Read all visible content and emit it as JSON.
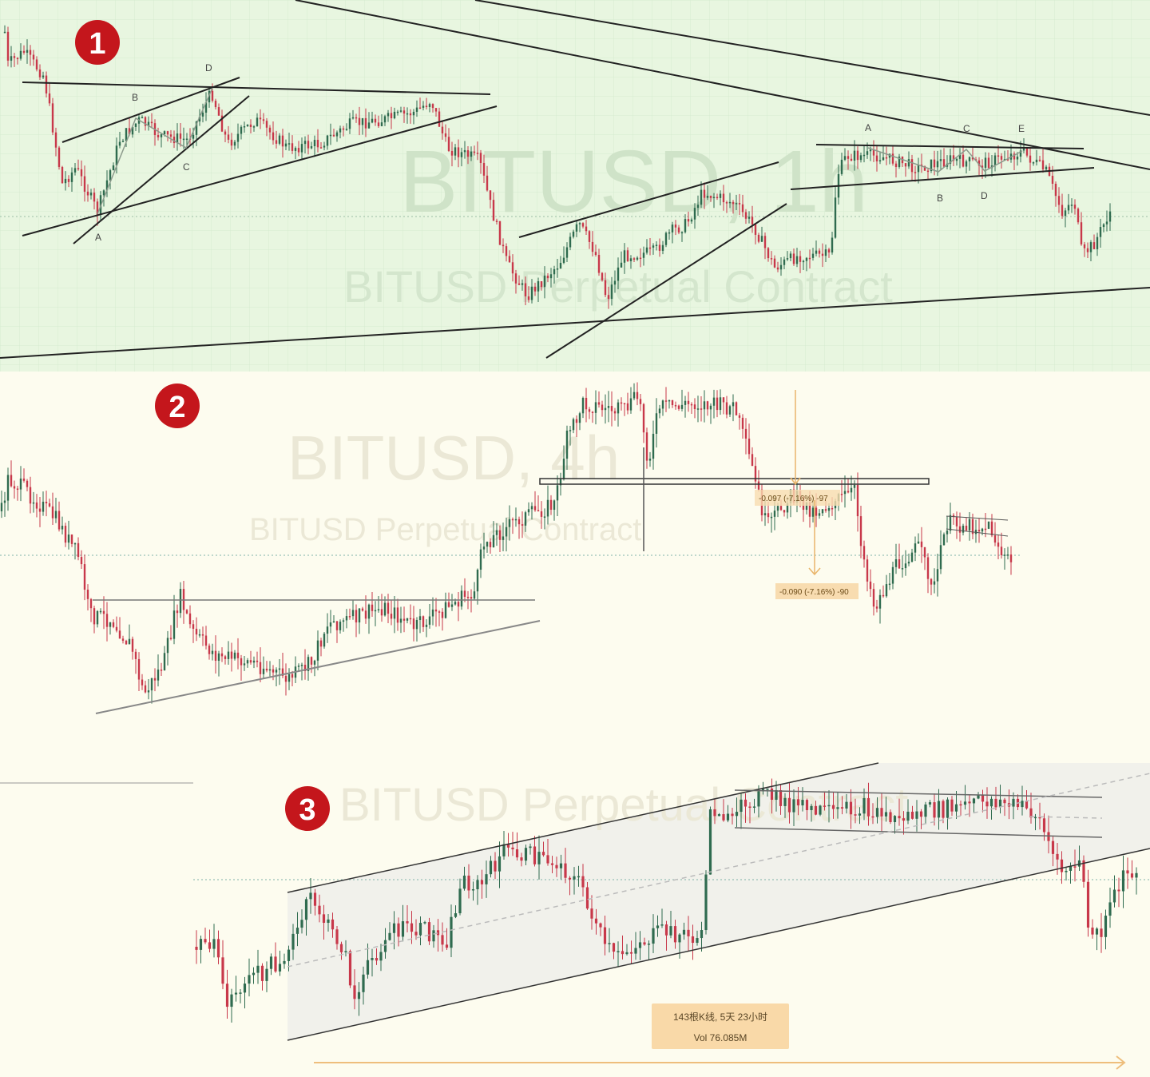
{
  "panels": [
    {
      "badge": "1",
      "watermark_title": "BITUSD, 1h",
      "watermark_subtitle": "BITUSD Perpetual Contract"
    },
    {
      "badge": "2",
      "watermark_title": "BITUSD, 4h",
      "watermark_subtitle": "BITUSD Perpetual Contract",
      "measure_upper_label": "-0.097 (-7.16%) -97",
      "measure_lower_label": "-0.090 (-7.16%) -90"
    },
    {
      "badge": "3",
      "watermark_subtitle": "BITUSD Perpetual Contract",
      "range_label_line1": "143根K线, 5天 23小时",
      "range_label_line2": "Vol 76.085M"
    }
  ],
  "pattern_labels": {
    "left_triangle": [
      "A",
      "B",
      "C",
      "D"
    ],
    "right_triangle": [
      "A",
      "B",
      "C",
      "D",
      "E"
    ]
  },
  "colors": {
    "panel1_bg": "#e8f6e0",
    "panel2_bg": "#fdfcef",
    "panel3_bg": "#fdfcef",
    "up_candle": "#2f6b4f",
    "down_candle": "#c8384a",
    "badge": "#c4161c",
    "measure": "#e9b56a",
    "trendline": "#1f1f1f"
  },
  "chart_data": [
    {
      "type": "candlestick",
      "panel": 1,
      "symbol": "BITUSD",
      "timeframe": "1h",
      "grid": true,
      "patterns": [
        "triangle A-B-C-D",
        "triangle A-B-C-D-E"
      ]
    },
    {
      "type": "candlestick",
      "panel": 2,
      "symbol": "BITUSD",
      "timeframe": "4h",
      "grid": false,
      "measurements": [
        "-0.097 (-7.16%) -97",
        "-0.090 (-7.16%) -90"
      ]
    },
    {
      "type": "candlestick",
      "panel": 3,
      "symbol": "BITUSD",
      "grid": false,
      "range": {
        "bars": 143,
        "span": "5天 23小时",
        "volume": "76.085M"
      }
    }
  ]
}
